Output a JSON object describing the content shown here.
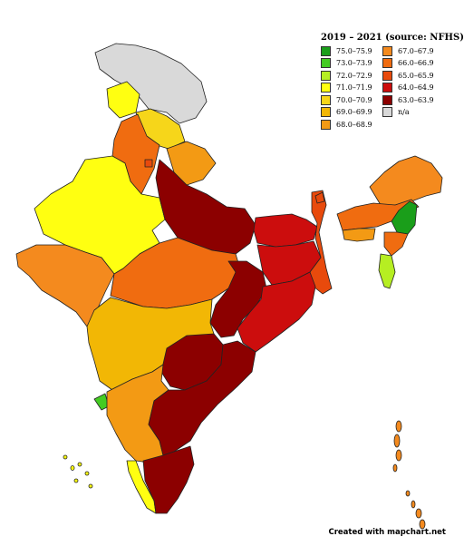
{
  "legend": {
    "title": "2019 – 2021 (source: NFHS)",
    "items": [
      {
        "label": "75.0–75.9",
        "color": "#1a9e1a"
      },
      {
        "label": "73.0–73.9",
        "color": "#44cc22"
      },
      {
        "label": "72.0–72.9",
        "color": "#b6ee22"
      },
      {
        "label": "71.0–71.9",
        "color": "#ffff11"
      },
      {
        "label": "70.0–70.9",
        "color": "#f6d61a"
      },
      {
        "label": "69.0–69.9",
        "color": "#f2b705"
      },
      {
        "label": "68.0–68.9",
        "color": "#f39a14"
      },
      {
        "label": "67.0–67.9",
        "color": "#f48a1e"
      },
      {
        "label": "66.0–66.9",
        "color": "#f06c10"
      },
      {
        "label": "65.0–65.9",
        "color": "#e84a0c"
      },
      {
        "label": "64.0–64.9",
        "color": "#cc0d0d"
      },
      {
        "label": "63.0–63.9",
        "color": "#8c0000"
      },
      {
        "label": "n/a",
        "color": "#d9d9d9"
      }
    ]
  },
  "credit": "Created with mapchart.net"
}
